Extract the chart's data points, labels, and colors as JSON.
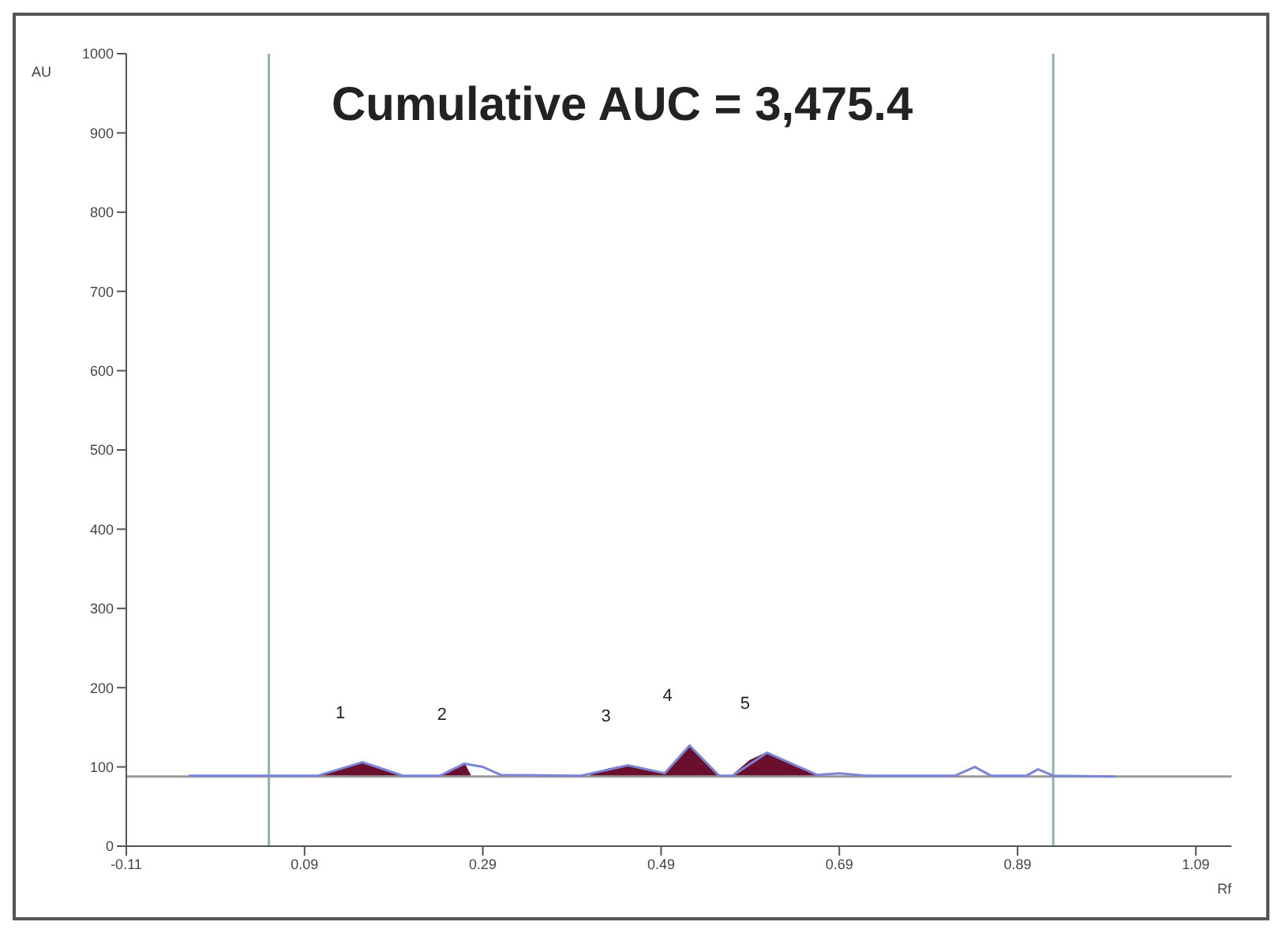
{
  "chart_data": {
    "type": "line",
    "title": "Cumulative AUC = 3,475.4",
    "xlabel": "Rf",
    "ylabel": "AU",
    "xlim": [
      -0.11,
      1.13
    ],
    "xticks": [
      -0.11,
      0.09,
      0.29,
      0.49,
      0.69,
      0.89,
      1.09
    ],
    "ylim": [
      0,
      1000
    ],
    "yticks": [
      0,
      100,
      200,
      300,
      400,
      500,
      600,
      700,
      800,
      900,
      1000
    ],
    "marker": "none",
    "series": [
      {
        "color": "#7b86d6",
        "x": [
          -0.04,
          0.105,
          0.155,
          0.2,
          0.242,
          0.269,
          0.29,
          0.31,
          0.4,
          0.453,
          0.494,
          0.522,
          0.555,
          0.57,
          0.609,
          0.665,
          0.69,
          0.72,
          0.82,
          0.842,
          0.86,
          0.9,
          0.913,
          0.93,
          1.0
        ],
        "values": [
          89,
          89,
          106,
          89,
          89,
          104,
          100,
          90,
          89,
          102,
          92,
          127,
          89,
          89,
          118,
          90,
          92,
          89,
          89,
          100,
          89,
          89,
          97,
          89,
          88
        ]
      },
      {
        "type": "area",
        "color": "#6b0f2e",
        "x": [
          0.108,
          0.13,
          0.155,
          0.18,
          0.198,
          0.22,
          0.242,
          0.255,
          0.269,
          0.276,
          0.3,
          0.41,
          0.43,
          0.453,
          0.475,
          0.494,
          0.51,
          0.522,
          0.54,
          0.555,
          0.562,
          0.57,
          0.59,
          0.609,
          0.64,
          0.665
        ],
        "values": [
          89,
          97,
          106,
          97,
          89,
          null,
          89,
          96,
          104,
          89,
          null,
          89,
          97,
          102,
          97,
          92,
          112,
          127,
          105,
          89,
          null,
          89,
          108,
          118,
          100,
          90
        ]
      }
    ],
    "ref_lines": [
      {
        "axis": "x",
        "value": 0.05,
        "color": "#8fb3b0"
      },
      {
        "axis": "x",
        "value": 0.93,
        "color": "#8fb3b0"
      },
      {
        "axis": "y",
        "value": 88,
        "color": "#9a9a9a"
      }
    ],
    "annotations": [
      {
        "text": "1",
        "x": 0.155,
        "y": 106
      },
      {
        "text": "2",
        "x": 0.269,
        "y": 104
      },
      {
        "text": "3",
        "x": 0.453,
        "y": 102
      },
      {
        "text": "4",
        "x": 0.522,
        "y": 127
      },
      {
        "text": "5",
        "x": 0.609,
        "y": 118
      }
    ]
  }
}
